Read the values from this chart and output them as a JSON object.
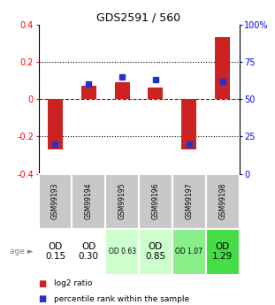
{
  "title": "GDS2591 / 560",
  "samples": [
    "GSM99193",
    "GSM99194",
    "GSM99195",
    "GSM99196",
    "GSM99197",
    "GSM99198"
  ],
  "log2_ratios": [
    -0.27,
    0.07,
    0.09,
    0.06,
    -0.27,
    0.33
  ],
  "percentile_ranks": [
    20,
    60,
    65,
    63,
    20,
    62
  ],
  "age_labels": [
    "OD\n0.15",
    "OD\n0.30",
    "OD 0.63",
    "OD\n0.85",
    "OD 1.07",
    "OD\n1.29"
  ],
  "age_bg_colors": [
    "#ffffff",
    "#ffffff",
    "#ccffcc",
    "#ccffcc",
    "#88ee88",
    "#44dd44"
  ],
  "age_fontsize_small": [
    false,
    false,
    true,
    false,
    true,
    false
  ],
  "ylim": [
    -0.4,
    0.4
  ],
  "y_left_ticks": [
    -0.4,
    -0.2,
    0.0,
    0.2,
    0.4
  ],
  "y_right_ticks": [
    0,
    25,
    50,
    75,
    100
  ],
  "bar_color": "#cc2222",
  "marker_color": "#2233cc",
  "dotted_line_color": "#000000",
  "zero_line_color": "#cc0000",
  "sample_bg": "#c8c8c8",
  "legend_items": [
    "log2 ratio",
    "percentile rank within the sample"
  ]
}
